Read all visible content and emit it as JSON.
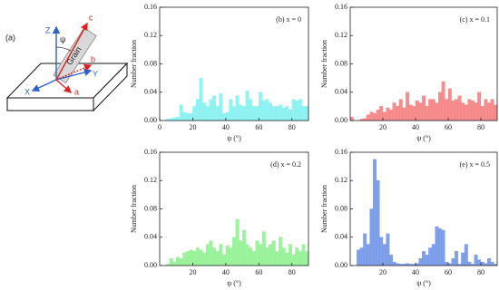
{
  "diagram": {
    "label": "(a)",
    "z_axis": "Z",
    "x_axis": "X",
    "y_axis": "Y",
    "angle": "ψ",
    "grain": "Grain",
    "vector_c": "c",
    "vector_b": "b",
    "vector_a": "a"
  },
  "chart_data": [
    {
      "type": "histogram",
      "title": "(b) x = 0",
      "y_label": "Number fraction",
      "x_label": "ψ (°)",
      "color": "#7ff0f0",
      "bins": [
        0,
        2,
        4,
        6,
        8,
        10,
        12,
        14,
        16,
        18,
        20,
        22,
        24,
        26,
        28,
        30,
        32,
        34,
        36,
        38,
        40,
        42,
        44,
        46,
        48,
        50,
        52,
        54,
        56,
        58,
        60,
        62,
        64,
        66,
        68,
        70,
        72,
        74,
        76,
        78,
        80,
        82,
        84,
        86,
        88,
        90
      ],
      "values": [
        0.0,
        0.0,
        0.002,
        0.003,
        0.004,
        0.005,
        0.022,
        0.012,
        0.01,
        0.01,
        0.02,
        0.03,
        0.06,
        0.025,
        0.02,
        0.03,
        0.035,
        0.02,
        0.038,
        0.01,
        0.012,
        0.03,
        0.02,
        0.035,
        0.022,
        0.02,
        0.042,
        0.03,
        0.02,
        0.02,
        0.04,
        0.028,
        0.03,
        0.025,
        0.02,
        0.02,
        0.022,
        0.018,
        0.02,
        0.015,
        0.03,
        0.028,
        0.03,
        0.02,
        0.02
      ],
      "xlim": [
        0,
        90
      ],
      "xticks": [
        0,
        20,
        40,
        60,
        80
      ],
      "ylim": [
        0,
        0.16
      ],
      "yticks": [
        {
          "value": 0,
          "label": "0.00"
        },
        0.04,
        0.08,
        0.12,
        0.16
      ]
    },
    {
      "type": "histogram",
      "title": "(c) x = 0.1",
      "y_label": "Number fraction",
      "x_label": "ψ (°)",
      "color": "#f47a7a",
      "bins": [
        0,
        2,
        4,
        6,
        8,
        10,
        12,
        14,
        16,
        18,
        20,
        22,
        24,
        26,
        28,
        30,
        32,
        34,
        36,
        38,
        40,
        42,
        44,
        46,
        48,
        50,
        52,
        54,
        56,
        58,
        60,
        62,
        64,
        66,
        68,
        70,
        72,
        74,
        76,
        78,
        80,
        82,
        84,
        86,
        88,
        90
      ],
      "values": [
        0.005,
        0.0,
        0.0,
        0.002,
        0.003,
        0.008,
        0.012,
        0.01,
        0.015,
        0.02,
        0.012,
        0.018,
        0.015,
        0.025,
        0.02,
        0.03,
        0.018,
        0.04,
        0.022,
        0.02,
        0.028,
        0.025,
        0.035,
        0.02,
        0.03,
        0.03,
        0.025,
        0.04,
        0.055,
        0.03,
        0.045,
        0.028,
        0.03,
        0.035,
        0.025,
        0.022,
        0.03,
        0.028,
        0.025,
        0.04,
        0.02,
        0.03,
        0.025,
        0.03,
        0.022
      ],
      "xlim": [
        0,
        90
      ],
      "xticks": [
        20,
        40,
        60,
        80
      ],
      "ylim": [
        0,
        0.16
      ],
      "yticks": [
        {
          "value": 0,
          "label": "0.00"
        },
        0.04,
        0.08,
        0.12,
        0.16
      ]
    },
    {
      "type": "histogram",
      "title": "(d) x = 0.2",
      "y_label": "Number fraction",
      "x_label": "ψ (°)",
      "color": "#8cf08c",
      "bins": [
        0,
        2,
        4,
        6,
        8,
        10,
        12,
        14,
        16,
        18,
        20,
        22,
        24,
        26,
        28,
        30,
        32,
        34,
        36,
        38,
        40,
        42,
        44,
        46,
        48,
        50,
        52,
        54,
        56,
        58,
        60,
        62,
        64,
        66,
        68,
        70,
        72,
        74,
        76,
        78,
        80,
        82,
        84,
        86,
        88,
        90
      ],
      "values": [
        0.0,
        0.0,
        0.002,
        0.01,
        0.005,
        0.012,
        0.01,
        0.018,
        0.02,
        0.022,
        0.02,
        0.025,
        0.022,
        0.018,
        0.03,
        0.035,
        0.025,
        0.02,
        0.03,
        0.015,
        0.028,
        0.025,
        0.04,
        0.065,
        0.035,
        0.05,
        0.03,
        0.025,
        0.02,
        0.035,
        0.03,
        0.048,
        0.025,
        0.03,
        0.035,
        0.02,
        0.04,
        0.025,
        0.018,
        0.03,
        0.015,
        0.025,
        0.02,
        0.03,
        0.02
      ],
      "xlim": [
        0,
        90
      ],
      "xticks": [
        20,
        40,
        60,
        80
      ],
      "ylim": [
        0,
        0.16
      ],
      "yticks": [
        {
          "value": 0,
          "label": "0.00"
        },
        0.04,
        0.08,
        0.12,
        0.16
      ]
    },
    {
      "type": "histogram",
      "title": "(e) x = 0.5",
      "y_label": "Number fraction",
      "x_label": "ψ (°)",
      "color": "#6b8fe6",
      "bins": [
        0,
        2,
        4,
        6,
        8,
        10,
        12,
        14,
        16,
        18,
        20,
        22,
        24,
        26,
        28,
        30,
        32,
        34,
        36,
        38,
        40,
        42,
        44,
        46,
        48,
        50,
        52,
        54,
        56,
        58,
        60,
        62,
        64,
        66,
        68,
        70,
        72,
        74,
        76,
        78,
        80,
        82,
        84,
        86,
        88,
        90
      ],
      "values": [
        0.0,
        0.0,
        0.022,
        0.025,
        0.045,
        0.03,
        0.08,
        0.15,
        0.12,
        0.04,
        0.03,
        0.045,
        0.015,
        0.005,
        0.003,
        0.002,
        0.002,
        0.003,
        0.002,
        0.002,
        0.003,
        0.01,
        0.02,
        0.015,
        0.025,
        0.03,
        0.055,
        0.052,
        0.05,
        0.005,
        0.003,
        0.01,
        0.02,
        0.002,
        0.018,
        0.03,
        0.005,
        0.002,
        0.015,
        0.008,
        0.005,
        0.003,
        0.01,
        0.005,
        0.002
      ],
      "xlim": [
        0,
        90
      ],
      "xticks": [
        20,
        40,
        60,
        80
      ],
      "ylim": [
        0,
        0.16
      ],
      "yticks": [
        {
          "value": 0,
          "label": "0.00"
        },
        0.04,
        0.08,
        0.12,
        0.16
      ]
    }
  ]
}
